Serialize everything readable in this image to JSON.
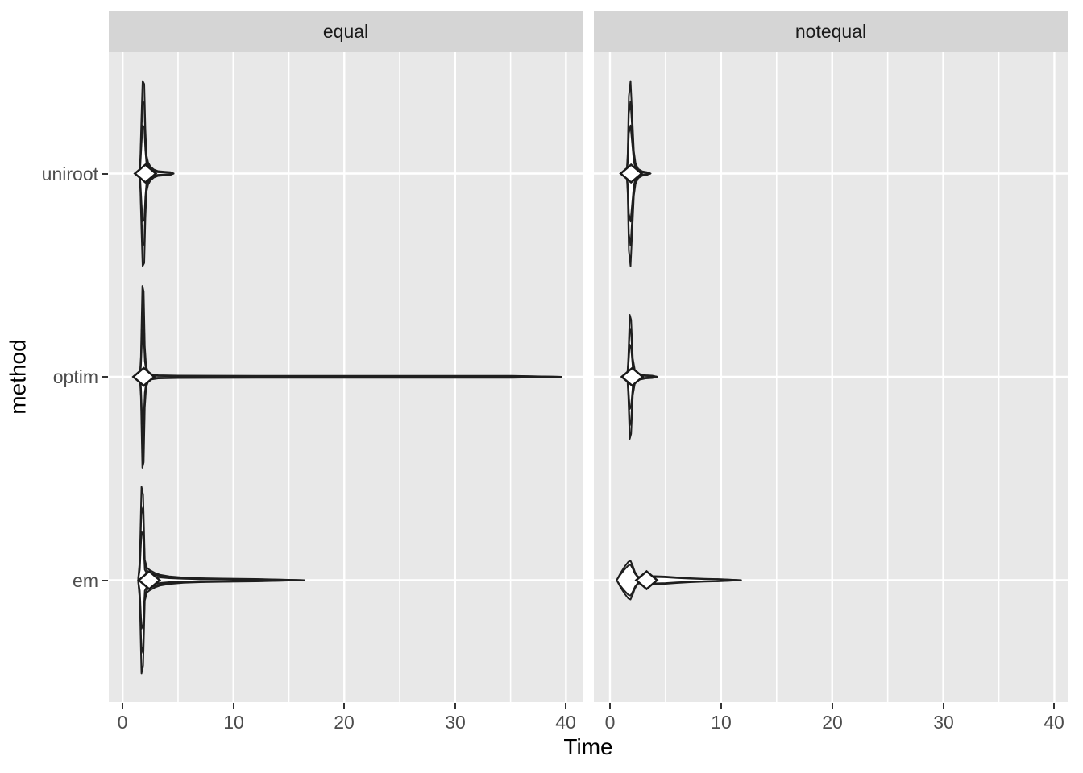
{
  "figure": {
    "background": "#FFFFFF",
    "panel_bg": "#E8E8E8",
    "strip_bg": "#D5D5D5",
    "grid_color": "#FFFFFF",
    "tick_mark_color": "#333333",
    "tick_label_color": "#4D4D4D",
    "strip_text_color": "#1A1A1A",
    "violin_stroke": "#1F1F1F",
    "violin_fill": "#FFFFFF",
    "diamond_fill": "#FFFFFF",
    "diamond_stroke": "#1A1A1A"
  },
  "chart_data": {
    "type": "violin",
    "orientation": "horizontal",
    "title": "",
    "xlabel": "Time",
    "ylabel": "method",
    "grid": "on",
    "legend": "none",
    "halfwidth_unit": "category_band",
    "x_major_ticks": [
      0,
      10,
      20,
      30,
      40
    ],
    "x_minor_ticks": [
      5,
      15,
      25,
      35
    ],
    "categories": [
      {
        "label": "uniroot",
        "position": 3
      },
      {
        "label": "optim",
        "position": 2
      },
      {
        "label": "em",
        "position": 1
      }
    ],
    "y_range": [
      0.4,
      3.6
    ],
    "violin_layers": [
      1,
      0.78,
      0.52
    ],
    "facets": [
      {
        "label": "equal",
        "xlim": [
          -1.25,
          41.5
        ],
        "violins": [
          {
            "method": "uniroot",
            "mean": 2.05,
            "min": 1.5,
            "max": 4.6,
            "outline": [
              [
                1.5,
                0
              ],
              [
                1.6,
                0.08
              ],
              [
                1.7,
                0.28
              ],
              [
                1.8,
                0.455
              ],
              [
                1.95,
                0.44
              ],
              [
                2.05,
                0.22
              ],
              [
                2.15,
                0.09
              ],
              [
                2.3,
                0.055
              ],
              [
                2.5,
                0.035
              ],
              [
                2.8,
                0.02
              ],
              [
                3.2,
                0.012
              ],
              [
                3.8,
                0.009
              ],
              [
                4.3,
                0.007
              ],
              [
                4.6,
                0
              ]
            ]
          },
          {
            "method": "optim",
            "mean": 1.9,
            "min": 1.55,
            "max": 39.6,
            "outline": [
              [
                1.55,
                0
              ],
              [
                1.65,
                0.1
              ],
              [
                1.78,
                0.447
              ],
              [
                1.9,
                0.42
              ],
              [
                2.0,
                0.15
              ],
              [
                2.12,
                0.05
              ],
              [
                2.3,
                0.025
              ],
              [
                2.6,
                0.013
              ],
              [
                3.2,
                0.008
              ],
              [
                5,
                0.006
              ],
              [
                12,
                0.005
              ],
              [
                25,
                0.005
              ],
              [
                35,
                0.005
              ],
              [
                39.6,
                0
              ]
            ]
          },
          {
            "method": "em",
            "mean": 2.4,
            "min": 1.4,
            "max": 16.4,
            "outline": [
              [
                1.4,
                0
              ],
              [
                1.55,
                0.1
              ],
              [
                1.7,
                0.459
              ],
              [
                1.85,
                0.42
              ],
              [
                2.0,
                0.1
              ],
              [
                2.2,
                0.06
              ],
              [
                2.5,
                0.048
              ],
              [
                2.9,
                0.036
              ],
              [
                3.4,
                0.026
              ],
              [
                4.2,
                0.019
              ],
              [
                5.5,
                0.013
              ],
              [
                7,
                0.01
              ],
              [
                9,
                0.008
              ],
              [
                12,
                0.006
              ],
              [
                16.4,
                0
              ]
            ]
          }
        ]
      },
      {
        "label": "notequal",
        "xlim": [
          -1.45,
          41.2
        ],
        "violins": [
          {
            "method": "uniroot",
            "mean": 1.9,
            "min": 1.5,
            "max": 3.65,
            "outline": [
              [
                1.5,
                0
              ],
              [
                1.6,
                0.1
              ],
              [
                1.7,
                0.38
              ],
              [
                1.85,
                0.455
              ],
              [
                2.0,
                0.28
              ],
              [
                2.15,
                0.11
              ],
              [
                2.3,
                0.05
              ],
              [
                2.55,
                0.022
              ],
              [
                2.9,
                0.011
              ],
              [
                3.3,
                0.007
              ],
              [
                3.65,
                0
              ]
            ]
          },
          {
            "method": "optim",
            "mean": 2.0,
            "min": 1.55,
            "max": 4.25,
            "outline": [
              [
                1.55,
                0
              ],
              [
                1.65,
                0.09
              ],
              [
                1.78,
                0.305
              ],
              [
                1.9,
                0.28
              ],
              [
                2.05,
                0.09
              ],
              [
                2.25,
                0.03
              ],
              [
                2.6,
                0.015
              ],
              [
                3.2,
                0.008
              ],
              [
                3.8,
                0.006
              ],
              [
                4.25,
                0
              ]
            ]
          },
          {
            "method": "em",
            "mean": 3.3,
            "min": 0.6,
            "max": 11.8,
            "layers": [
              1,
              0.8
            ],
            "outline": [
              [
                0.6,
                0
              ],
              [
                0.95,
                0.035
              ],
              [
                1.3,
                0.065
              ],
              [
                1.65,
                0.09
              ],
              [
                1.85,
                0.095
              ],
              [
                2.05,
                0.07
              ],
              [
                2.25,
                0.04
              ],
              [
                2.5,
                0.018
              ],
              [
                2.8,
                0.014
              ],
              [
                3.2,
                0.016
              ],
              [
                4.0,
                0.02
              ],
              [
                5.0,
                0.018
              ],
              [
                6.0,
                0.014
              ],
              [
                7.2,
                0.01
              ],
              [
                8.5,
                0.007
              ],
              [
                10,
                0.005
              ],
              [
                11.8,
                0
              ]
            ]
          }
        ]
      }
    ]
  }
}
